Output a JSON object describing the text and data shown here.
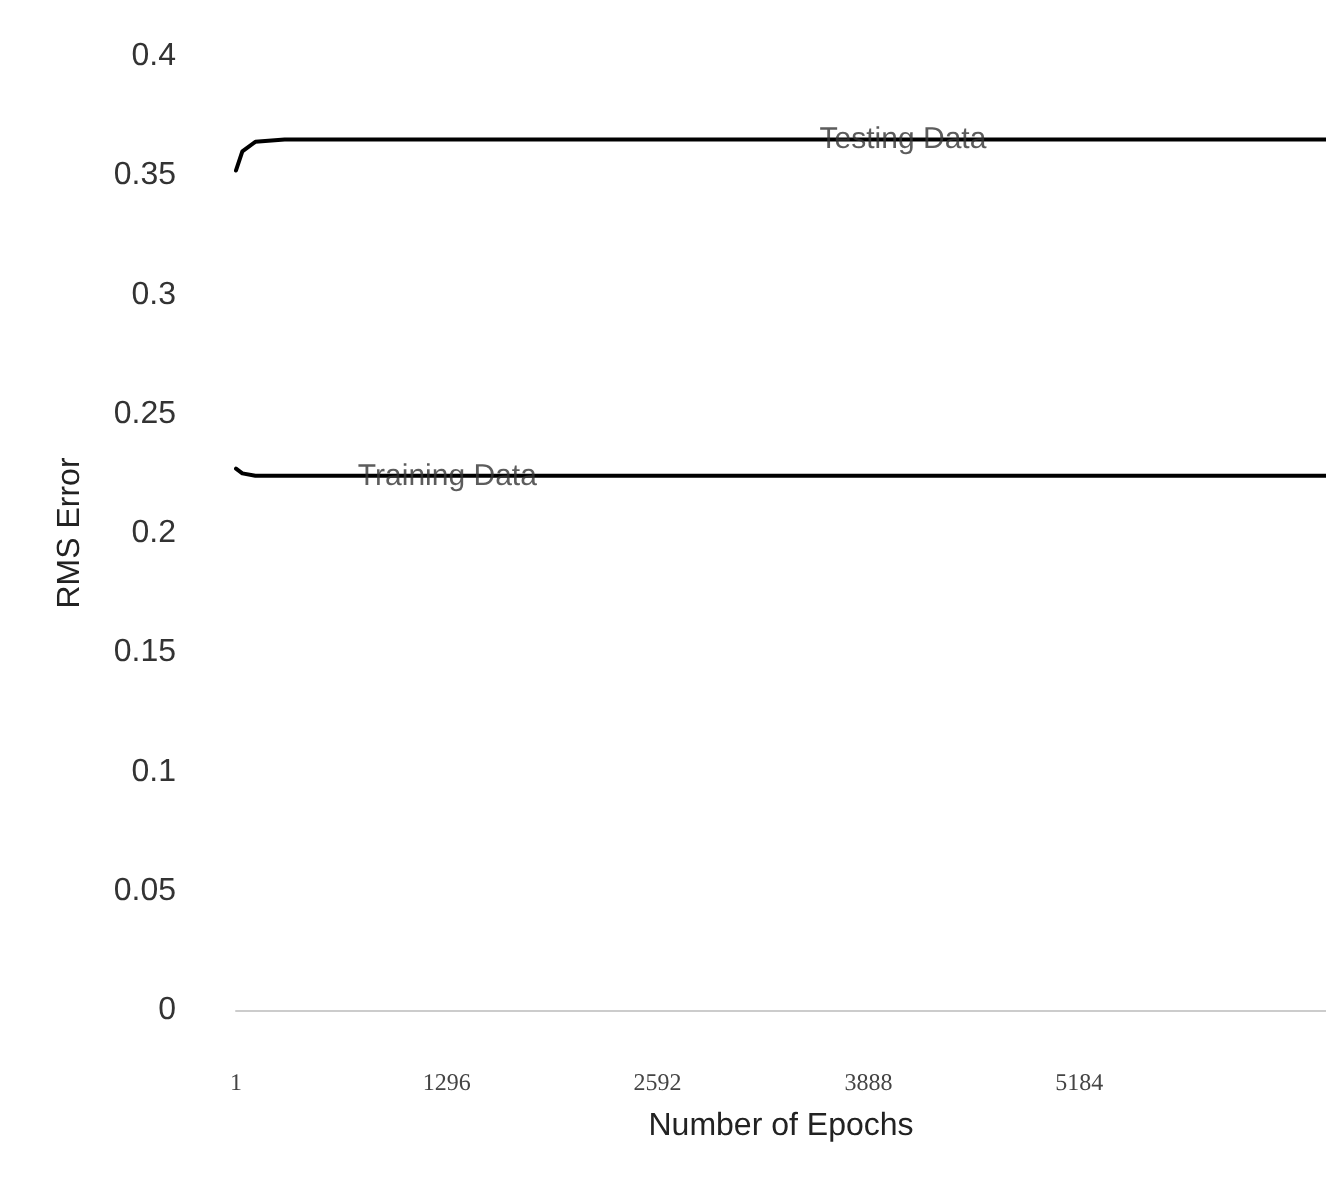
{
  "chart_data": {
    "type": "line",
    "xlabel": "Number of Epochs",
    "ylabel": "RMS Error",
    "xlim": [
      1,
      6700
    ],
    "xticks": [
      1,
      1296,
      2592,
      3888,
      5184
    ],
    "ylim": [
      0,
      0.4
    ],
    "yticks": [
      0,
      0.05,
      0.1,
      0.15,
      0.2,
      0.25,
      0.3,
      0.35,
      0.4
    ],
    "grid": false,
    "marker": "none",
    "line_style": "solid",
    "series": [
      {
        "color": "#000000",
        "x": [
          1,
          40,
          120,
          300,
          1000,
          3000,
          6700
        ],
        "values": [
          0.352,
          0.36,
          0.364,
          0.365,
          0.365,
          0.365,
          0.365
        ]
      },
      {
        "color": "#000000",
        "x": [
          1,
          40,
          120,
          300,
          1000,
          3000,
          6700
        ],
        "values": [
          0.227,
          0.225,
          0.224,
          0.224,
          0.224,
          0.224,
          0.224
        ]
      }
    ],
    "annotations": [
      {
        "text": "Testing Data",
        "x": 4100,
        "y": 0.365
      },
      {
        "text": "Training Data",
        "x": 1300,
        "y": 0.224
      }
    ]
  }
}
